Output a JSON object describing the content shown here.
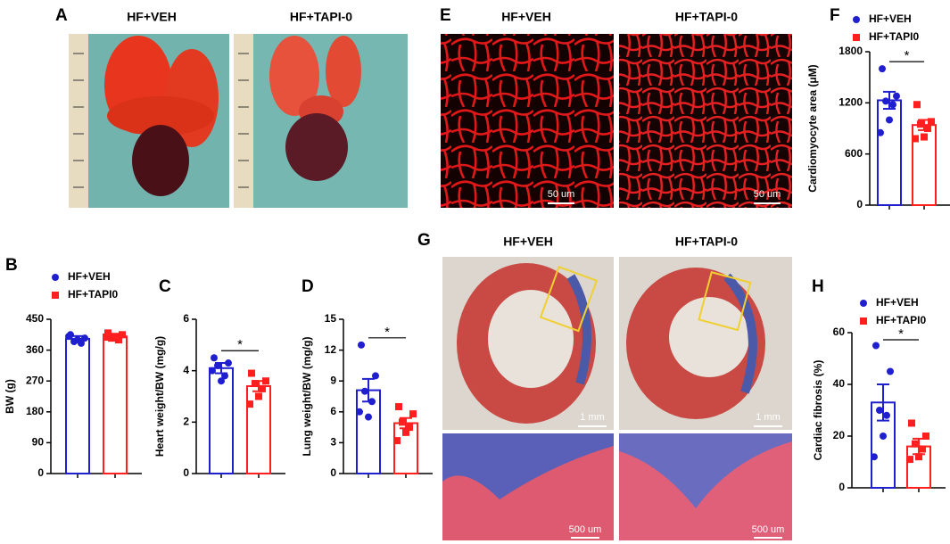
{
  "panel_A": {
    "letter": "A",
    "images": [
      {
        "label": "HF+VEH"
      },
      {
        "label": "HF+TAPI-0"
      }
    ]
  },
  "panel_E": {
    "letter": "E",
    "images": [
      {
        "label": "HF+VEH",
        "scale_bar": "50 um"
      },
      {
        "label": "HF+TAPI-0",
        "scale_bar": "50 um"
      }
    ]
  },
  "panel_G": {
    "letter": "G",
    "images": [
      {
        "label": "HF+VEH",
        "scale_bar": "1 mm",
        "zoom_scale_bar": "500 um"
      },
      {
        "label": "HF+TAPI-0",
        "scale_bar": "1 mm",
        "zoom_scale_bar": "500 um"
      }
    ]
  },
  "chart_data": [
    {
      "type": "bar",
      "panel": "B",
      "ylabel": "BW (g)",
      "ylim": [
        0,
        450
      ],
      "yticks": [
        0,
        90,
        180,
        270,
        360,
        450
      ],
      "legend": true,
      "series": [
        {
          "name": "HF+VEH",
          "color": "#1f1fd0",
          "marker": "circle",
          "values": [
            393
          ],
          "errors": [
            8
          ],
          "points": [
            405,
            395,
            385,
            380,
            390,
            400
          ]
        },
        {
          "name": "HF+TAPI0",
          "color": "#ff1f1f",
          "marker": "square",
          "values": [
            400
          ],
          "errors": [
            6
          ],
          "points": [
            410,
            405,
            395,
            390,
            400,
            398
          ]
        }
      ]
    },
    {
      "type": "bar",
      "panel": "C",
      "ylabel": "Heart weight/BW (mg/g)",
      "ylim": [
        0,
        6
      ],
      "yticks": [
        0,
        2,
        4,
        6
      ],
      "legend": false,
      "annotation": "*",
      "series": [
        {
          "color": "#1f1fd0",
          "marker": "circle",
          "values": [
            4.1
          ],
          "errors": [
            0.2
          ],
          "points": [
            4.5,
            4.3,
            4.2,
            3.8,
            3.6,
            4.0
          ]
        },
        {
          "color": "#ff1f1f",
          "marker": "square",
          "values": [
            3.4
          ],
          "errors": [
            0.2
          ],
          "points": [
            3.9,
            3.6,
            3.5,
            3.3,
            3.0,
            2.7
          ]
        }
      ]
    },
    {
      "type": "bar",
      "panel": "D",
      "ylabel": "Lung weight/BW (mg/g)",
      "ylim": [
        0,
        15
      ],
      "yticks": [
        0,
        3,
        6,
        9,
        12,
        15
      ],
      "legend": false,
      "annotation": "*",
      "series": [
        {
          "color": "#1f1fd0",
          "marker": "circle",
          "values": [
            8.1
          ],
          "errors": [
            1.1
          ],
          "points": [
            12.5,
            9.5,
            8,
            7,
            5.5,
            6
          ]
        },
        {
          "color": "#ff1f1f",
          "marker": "square",
          "values": [
            4.9
          ],
          "errors": [
            0.5
          ],
          "points": [
            6.5,
            5.8,
            5,
            4.5,
            4,
            3.2
          ]
        }
      ]
    },
    {
      "type": "bar",
      "panel": "F",
      "ylabel": "Cardiomyocyte area (μM)",
      "ylim": [
        0,
        1800
      ],
      "yticks": [
        0,
        600,
        1200,
        1800
      ],
      "legend": true,
      "annotation": "*",
      "series": [
        {
          "name": "HF+VEH",
          "color": "#1f1fd0",
          "marker": "circle",
          "values": [
            1230
          ],
          "errors": [
            100
          ],
          "points": [
            1600,
            1280,
            1220,
            1180,
            1000,
            850
          ]
        },
        {
          "name": "HF+TAPI0",
          "color": "#ff1f1f",
          "marker": "square",
          "values": [
            940
          ],
          "errors": [
            60
          ],
          "points": [
            1180,
            980,
            950,
            900,
            800,
            780
          ]
        }
      ]
    },
    {
      "type": "bar",
      "panel": "H",
      "ylabel": "Cardiac fibrosis (%)",
      "ylim": [
        0,
        60
      ],
      "yticks": [
        0,
        20,
        40,
        60
      ],
      "legend": true,
      "annotation": "*",
      "series": [
        {
          "name": "HF+VEH",
          "color": "#1f1fd0",
          "marker": "circle",
          "values": [
            33
          ],
          "errors": [
            7
          ],
          "points": [
            55,
            45,
            30,
            28,
            20,
            12
          ]
        },
        {
          "name": "HF+TAPI0",
          "color": "#ff1f1f",
          "marker": "square",
          "values": [
            16
          ],
          "errors": [
            3
          ],
          "points": [
            25,
            20,
            17,
            15,
            12,
            11
          ]
        }
      ]
    }
  ]
}
